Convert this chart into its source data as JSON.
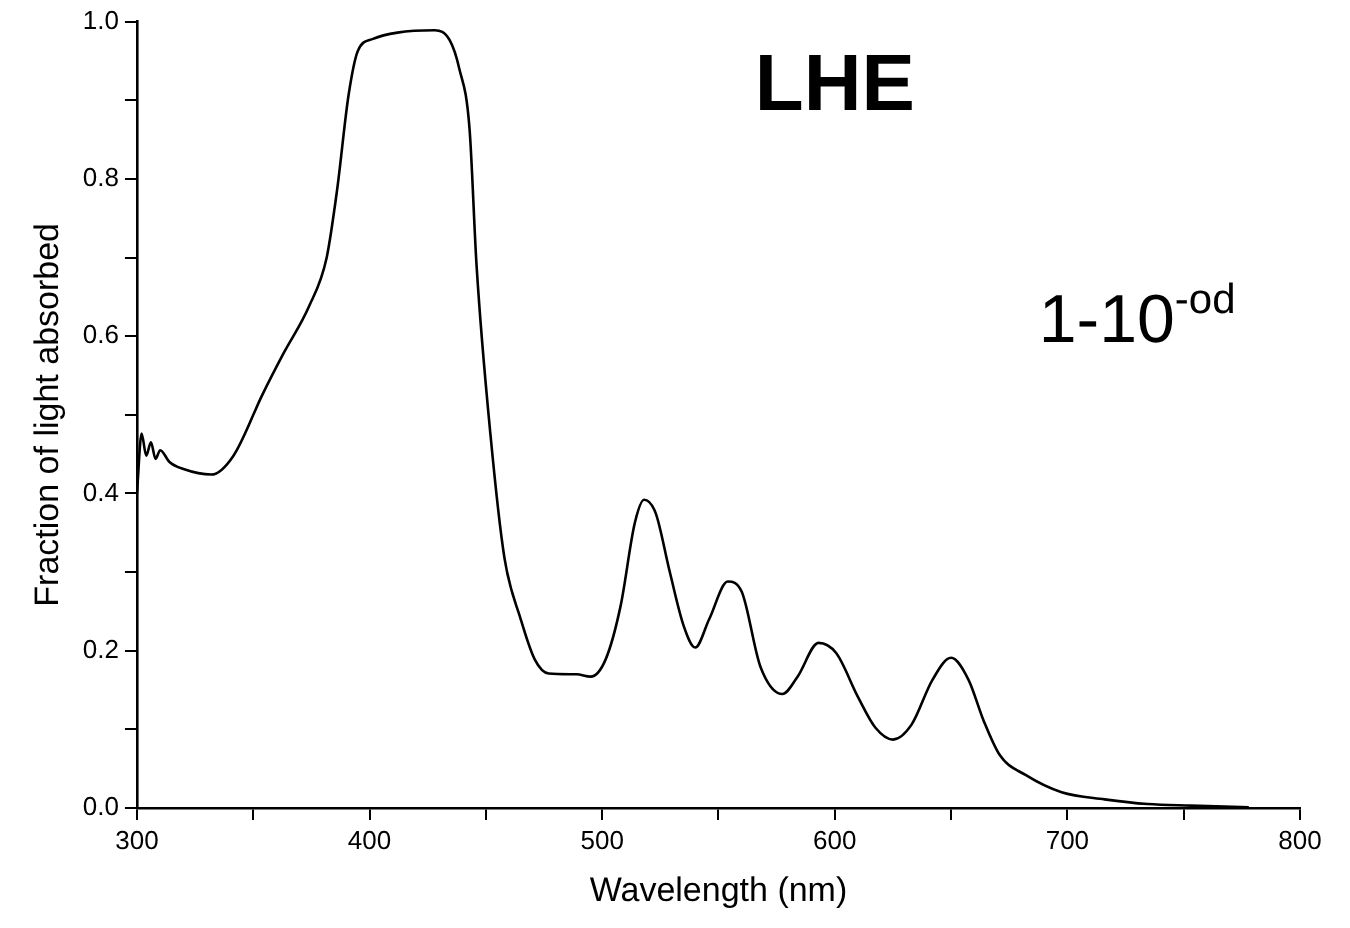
{
  "chart_data": {
    "type": "line",
    "xlabel": "Wavelength (nm)",
    "ylabel": "Fraction of light absorbed",
    "annotations": [
      "LHE",
      "1-10$^{-od}$"
    ],
    "x": [
      300,
      302,
      304,
      306,
      308,
      310,
      314,
      320,
      332,
      341.5,
      354,
      363,
      374,
      381.5,
      386,
      391,
      395,
      401.5,
      412,
      428,
      434.5,
      438.5,
      443,
      446,
      452,
      458,
      465,
      471,
      477,
      489,
      495,
      501.5,
      508,
      514,
      518,
      523,
      529,
      535,
      540,
      546,
      554,
      560,
      568,
      577.5,
      584,
      593,
      600.6,
      610,
      617.5,
      625,
      633,
      642,
      650,
      657.5,
      664,
      671,
      682,
      697.5,
      716,
      734.5,
      753,
      778
    ],
    "series": [
      {
        "color": "#000000",
        "values": [
          0.4,
          0.476,
          0.448,
          0.465,
          0.444,
          0.455,
          0.44,
          0.431,
          0.424,
          0.448,
          0.526,
          0.578,
          0.638,
          0.699,
          0.785,
          0.907,
          0.963,
          0.978,
          0.986,
          0.989,
          0.976,
          0.941,
          0.863,
          0.69,
          0.474,
          0.318,
          0.24,
          0.189,
          0.171,
          0.17,
          0.167,
          0.189,
          0.258,
          0.362,
          0.392,
          0.375,
          0.301,
          0.232,
          0.204,
          0.24,
          0.288,
          0.275,
          0.18,
          0.145,
          0.167,
          0.21,
          0.197,
          0.141,
          0.102,
          0.087,
          0.106,
          0.163,
          0.191,
          0.163,
          0.111,
          0.067,
          0.042,
          0.02,
          0.011,
          0.005,
          0.003,
          0.001
        ]
      }
    ],
    "xlim": [
      300,
      800
    ],
    "xticks": [
      300,
      {
        "value": 350,
        "label": null
      },
      400,
      {
        "value": 450,
        "label": null
      },
      500,
      {
        "value": 550,
        "label": null
      },
      600,
      {
        "value": 650,
        "label": null
      },
      700,
      {
        "value": 750,
        "label": null
      },
      800
    ],
    "ylim": [
      0,
      1
    ],
    "yticks": [
      {
        "value": 0,
        "label": "0.0"
      },
      {
        "value": 0.1,
        "label": null
      },
      {
        "value": 0.2,
        "label": "0.2"
      },
      {
        "value": 0.3,
        "label": null
      },
      {
        "value": 0.4,
        "label": "0.4"
      },
      {
        "value": 0.5,
        "label": null
      },
      {
        "value": 0.6,
        "label": "0.6"
      },
      {
        "value": 0.7,
        "label": null
      },
      {
        "value": 0.8,
        "label": "0.8"
      },
      {
        "value": 0.9,
        "label": null
      },
      {
        "value": 1,
        "label": "1.0"
      }
    ],
    "grid": false,
    "legend": false,
    "marker": "none",
    "line_style": "solid"
  }
}
